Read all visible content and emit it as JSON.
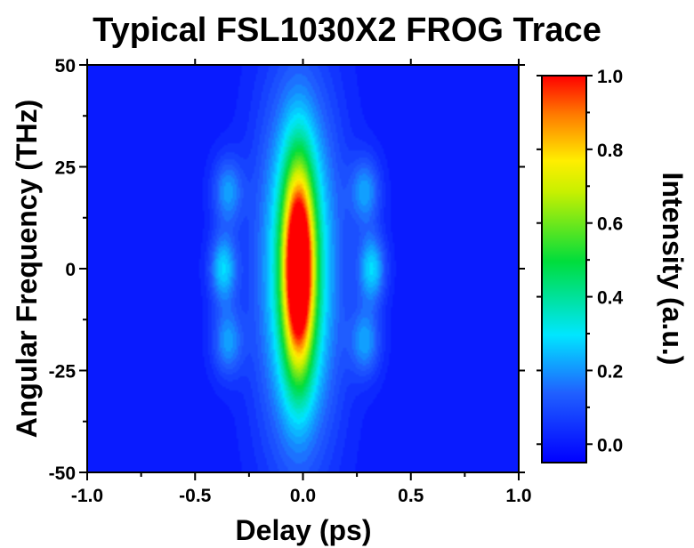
{
  "chart_data": {
    "type": "heatmap",
    "title": "Typical FSL1030X2 FROG Trace",
    "xlabel": "Delay (ps)",
    "ylabel": "Angular Frequency (THz)",
    "colorbar_label": "Intensity (a.u.)",
    "xlim": [
      -1.0,
      1.0
    ],
    "ylim": [
      -50,
      50
    ],
    "clim": [
      -0.05,
      1.0
    ],
    "x_ticks": [
      -1.0,
      -0.5,
      0.0,
      0.5,
      1.0
    ],
    "x_tick_labels": [
      "-1.0",
      "-0.5",
      "0.0",
      "0.5",
      "1.0"
    ],
    "y_ticks": [
      -50,
      -25,
      0,
      25,
      50
    ],
    "y_tick_labels": [
      "-50",
      "-25",
      "0",
      "25",
      "50"
    ],
    "colorbar_ticks": [
      0.0,
      0.2,
      0.4,
      0.6,
      0.8,
      1.0
    ],
    "colorbar_tick_labels": [
      "0.0",
      "0.2",
      "0.4",
      "0.6",
      "0.8",
      "1.0"
    ],
    "colormap": "rainbow (blue to red)",
    "background_color": "#0a2bff",
    "grid": false,
    "features": [
      {
        "delay": -0.02,
        "freq": 0,
        "intensity": 1.0,
        "sigma_delay": 0.05,
        "sigma_freq": 17
      },
      {
        "delay": -0.02,
        "freq": 0,
        "intensity": 0.42,
        "sigma_delay": 0.13,
        "sigma_freq": 31
      },
      {
        "delay": -0.37,
        "freq": 0,
        "intensity": 0.27,
        "sigma_delay": 0.045,
        "sigma_freq": 6
      },
      {
        "delay": 0.32,
        "freq": 0,
        "intensity": 0.27,
        "sigma_delay": 0.045,
        "sigma_freq": 6
      },
      {
        "delay": -0.35,
        "freq": 19,
        "intensity": 0.2,
        "sigma_delay": 0.05,
        "sigma_freq": 6
      },
      {
        "delay": 0.29,
        "freq": 19,
        "intensity": 0.2,
        "sigma_delay": 0.05,
        "sigma_freq": 6
      },
      {
        "delay": -0.35,
        "freq": -18,
        "intensity": 0.2,
        "sigma_delay": 0.05,
        "sigma_freq": 6
      },
      {
        "delay": 0.29,
        "freq": -18,
        "intensity": 0.2,
        "sigma_delay": 0.05,
        "sigma_freq": 6
      }
    ]
  }
}
